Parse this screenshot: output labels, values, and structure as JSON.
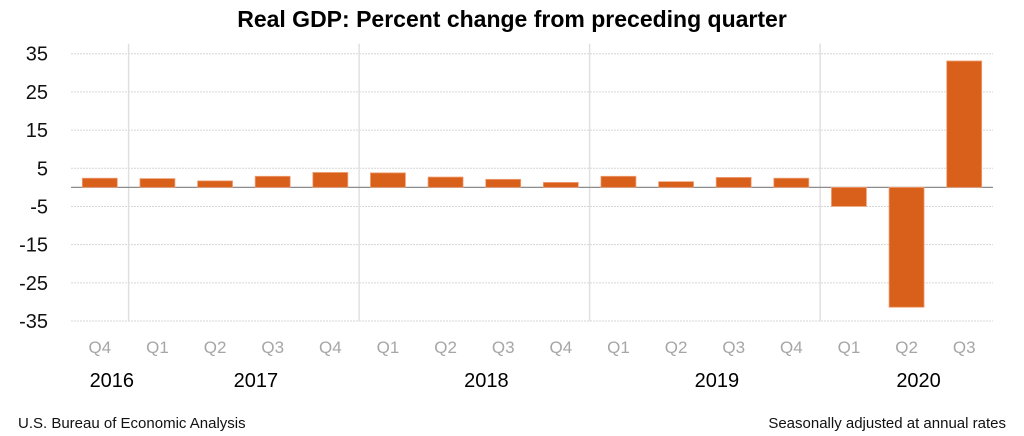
{
  "chart_data": {
    "type": "bar",
    "title": "Real GDP:  Percent change from preceding quarter",
    "xlabel": "",
    "ylabel": "",
    "ylim": [
      -35,
      35
    ],
    "yticks": [
      35,
      25,
      15,
      5,
      -5,
      -15,
      -25,
      -35
    ],
    "grid": true,
    "categories": [
      "Q4",
      "Q1",
      "Q2",
      "Q3",
      "Q4",
      "Q1",
      "Q2",
      "Q3",
      "Q4",
      "Q1",
      "Q2",
      "Q3",
      "Q4",
      "Q1",
      "Q2",
      "Q3"
    ],
    "years": [
      {
        "label": "2016",
        "quarters": [
          "Q4"
        ]
      },
      {
        "label": "2017",
        "quarters": [
          "Q1",
          "Q2",
          "Q3",
          "Q4"
        ]
      },
      {
        "label": "2018",
        "quarters": [
          "Q1",
          "Q2",
          "Q3",
          "Q4"
        ]
      },
      {
        "label": "2019",
        "quarters": [
          "Q1",
          "Q2",
          "Q3",
          "Q4"
        ]
      },
      {
        "label": "2020",
        "quarters": [
          "Q1",
          "Q2",
          "Q3"
        ]
      }
    ],
    "values": [
      2.4,
      2.3,
      1.7,
      2.9,
      3.9,
      3.8,
      2.7,
      2.1,
      1.3,
      2.9,
      1.5,
      2.6,
      2.4,
      -5.0,
      -31.4,
      33.1
    ],
    "bar_color": "#D9601A"
  },
  "footer": {
    "source": "U.S. Bureau of Economic Analysis",
    "note": "Seasonally adjusted at annual rates"
  }
}
